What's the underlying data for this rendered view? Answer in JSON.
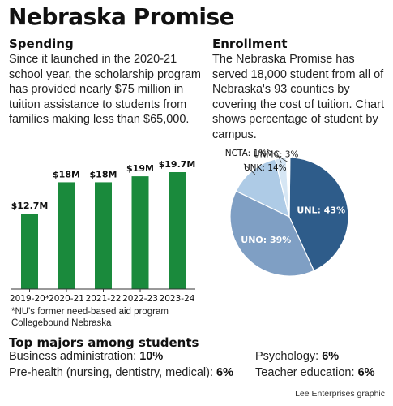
{
  "title": "Nebraska Promise",
  "spending": {
    "heading": "Spending",
    "text": "Since it launched in the 2020-21 school year, the scholarship program has provided nearly $75 million in tuition assistance to students from families making less than $65,000."
  },
  "enrollment": {
    "heading": "Enrollment",
    "text": "The Nebraska Promise has served 18,000 student from all of Nebraska's 93 counties by covering the cost of tuition. Chart shows percentage of student by campus."
  },
  "chart_data": [
    {
      "type": "bar",
      "categories": [
        "2019-20*",
        "2020-21",
        "2021-22",
        "2022-23",
        "2023-24"
      ],
      "values": [
        12.7,
        18,
        18,
        19,
        19.7
      ],
      "value_labels": [
        "$12.7M",
        "$18M",
        "$18M",
        "$19M",
        "$19.7M"
      ],
      "ylim": [
        0,
        19.7
      ],
      "color": "#1a8a3c"
    },
    {
      "type": "pie",
      "slices": [
        {
          "label": "UNL: 43%",
          "value": 43,
          "color": "#2e5c8a",
          "label_color": "#ffffff"
        },
        {
          "label": "UNO: 39%",
          "value": 39,
          "color": "#7f9fc4",
          "label_color": "#ffffff"
        },
        {
          "label": "UNK: 14%",
          "value": 14,
          "color": "#aecbe6",
          "label_color": "#111111"
        },
        {
          "label": "UNMC: 3%",
          "value": 3,
          "color": "#d6e6f4",
          "label_color": "#111111"
        },
        {
          "label": "NCTA: 1%",
          "value": 1,
          "color": "#ffffff",
          "label_color": "#111111"
        }
      ]
    }
  ],
  "footnote": "*NU's former need-based aid program Collegebound Nebraska",
  "majors": {
    "heading": "Top majors among students",
    "items": [
      {
        "name": "Business administration: ",
        "pct": "10%"
      },
      {
        "name": "Pre-health (nursing, dentistry, medical): ",
        "pct": "6%"
      },
      {
        "name": "Psychology: ",
        "pct": "6%"
      },
      {
        "name": "Teacher education: ",
        "pct": "6%"
      }
    ]
  },
  "credit": "Lee Enterprises graphic"
}
